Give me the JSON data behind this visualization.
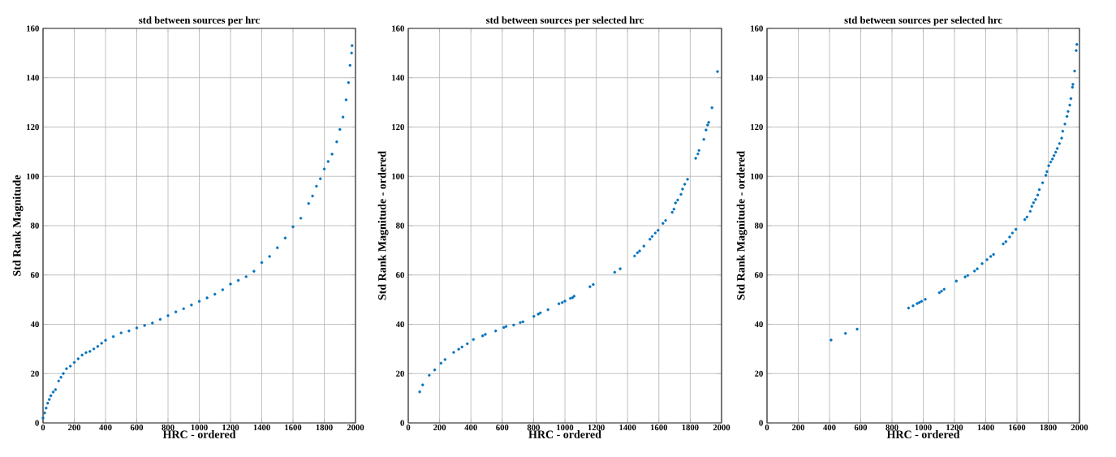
{
  "chart_data": [
    {
      "type": "scatter",
      "title": "std between sources per hrc",
      "xlabel": "HRC - ordered",
      "ylabel": "Std Rank Magnitude",
      "xlim": [
        0,
        2000
      ],
      "ylim": [
        0,
        160
      ],
      "xticks": [
        0,
        200,
        400,
        600,
        800,
        1000,
        1200,
        1400,
        1600,
        1800,
        2000
      ],
      "yticks": [
        0,
        20,
        40,
        60,
        80,
        100,
        120,
        140,
        160
      ],
      "grid": true,
      "x": [
        0,
        10,
        20,
        30,
        40,
        50,
        65,
        80,
        100,
        115,
        130,
        150,
        175,
        200,
        225,
        250,
        275,
        300,
        325,
        350,
        375,
        400,
        450,
        500,
        550,
        600,
        650,
        700,
        750,
        800,
        850,
        900,
        950,
        1000,
        1050,
        1100,
        1150,
        1200,
        1250,
        1300,
        1350,
        1400,
        1450,
        1500,
        1550,
        1600,
        1650,
        1700,
        1725,
        1750,
        1775,
        1800,
        1825,
        1850,
        1880,
        1900,
        1920,
        1940,
        1955,
        1965,
        1975,
        1978
      ],
      "series": [
        {
          "color": "#0072bd",
          "values": [
            2,
            4,
            6,
            8,
            9.5,
            11,
            12.5,
            13.5,
            17,
            18.5,
            20,
            22,
            23,
            24.5,
            26,
            27.5,
            28.5,
            29,
            30,
            31,
            32.3,
            33.5,
            35,
            36.5,
            37.3,
            38.5,
            39.5,
            40.5,
            42,
            43.5,
            45,
            46.3,
            47.8,
            49.3,
            50.7,
            52.2,
            54,
            56.3,
            57.8,
            59.3,
            61.5,
            65,
            67.5,
            71,
            75,
            79.5,
            83,
            89,
            92,
            96,
            99,
            103,
            106,
            109,
            114,
            119,
            124,
            131,
            138,
            145,
            150,
            153
          ]
        }
      ]
    },
    {
      "type": "scatter",
      "title": "std between sources per selected hrc",
      "xlabel": "HRC - ordered",
      "ylabel": "Std Rank Magnitude - ordered",
      "xlim": [
        0,
        2000
      ],
      "ylim": [
        0,
        160
      ],
      "xticks": [
        0,
        200,
        400,
        600,
        800,
        1000,
        1200,
        1400,
        1600,
        1800,
        2000
      ],
      "yticks": [
        0,
        20,
        40,
        60,
        80,
        100,
        120,
        140,
        160
      ],
      "grid": true,
      "x": [
        73,
        92,
        134,
        169,
        209,
        235,
        290,
        322,
        343,
        377,
        416,
        475,
        492,
        558,
        610,
        624,
        673,
        715,
        732,
        802,
        830,
        843,
        892,
        962,
        983,
        1000,
        1035,
        1049,
        1059,
        1160,
        1181,
        1318,
        1353,
        1445,
        1463,
        1477,
        1504,
        1543,
        1557,
        1577,
        1595,
        1626,
        1643,
        1685,
        1696,
        1706,
        1720,
        1741,
        1751,
        1765,
        1783,
        1835,
        1849,
        1856,
        1887,
        1901,
        1911,
        1918,
        1939,
        1974
      ],
      "series": [
        {
          "color": "#0072bd",
          "values": [
            12.6,
            15.4,
            19.3,
            21.5,
            24.2,
            25.7,
            28.6,
            29.9,
            30.8,
            32.1,
            33.8,
            35.3,
            35.9,
            37.3,
            38.7,
            39.1,
            39.7,
            40.7,
            41,
            43.2,
            44.1,
            44.6,
            45.9,
            48.3,
            48.8,
            49.4,
            50.5,
            50.8,
            51.4,
            55.2,
            56.1,
            61.1,
            62.5,
            67.7,
            69,
            69.7,
            71.7,
            74.5,
            75.6,
            77,
            78.1,
            80.9,
            82.1,
            85.4,
            86.7,
            89.2,
            90.4,
            92.7,
            94.8,
            96.8,
            98.8,
            107.3,
            109.1,
            110.5,
            115,
            118.8,
            120.8,
            121.9,
            127.8,
            142.5
          ]
        }
      ]
    },
    {
      "type": "scatter",
      "title": "std between sources per selected hrc",
      "xlabel": "HRC - ordered",
      "ylabel": "Std Rank Magnitude - ordered",
      "xlim": [
        0,
        2000
      ],
      "ylim": [
        0,
        160
      ],
      "xticks": [
        0,
        200,
        400,
        600,
        800,
        1000,
        1200,
        1400,
        1600,
        1800,
        2000
      ],
      "yticks": [
        0,
        20,
        40,
        60,
        80,
        100,
        120,
        140,
        160
      ],
      "grid": true,
      "x": [
        410,
        502,
        577,
        906,
        935,
        961,
        975,
        989,
        1013,
        1103,
        1117,
        1134,
        1212,
        1268,
        1285,
        1328,
        1346,
        1377,
        1408,
        1432,
        1450,
        1512,
        1529,
        1553,
        1571,
        1593,
        1650,
        1664,
        1685,
        1695,
        1706,
        1719,
        1733,
        1743,
        1764,
        1785,
        1792,
        1803,
        1816,
        1827,
        1837,
        1848,
        1858,
        1872,
        1886,
        1893,
        1907,
        1920,
        1927,
        1938,
        1945,
        1955,
        1958,
        1969,
        1979,
        1983
      ],
      "series": [
        {
          "color": "#0072bd",
          "values": [
            33.6,
            36.3,
            38,
            46.6,
            47.5,
            48.4,
            48.8,
            49.3,
            50.1,
            52.8,
            53.4,
            54.2,
            57.5,
            59.2,
            59.8,
            61.6,
            62.5,
            64.6,
            66.2,
            67.5,
            68.3,
            72.6,
            73.5,
            75.4,
            77,
            78.5,
            82.5,
            83.5,
            85.8,
            87.8,
            89.3,
            90.6,
            92.4,
            94.6,
            97.4,
            100.4,
            101.9,
            104.3,
            105.8,
            107,
            108.4,
            109.8,
            111.3,
            113.3,
            115.5,
            118.3,
            121.2,
            124.3,
            126.3,
            128.9,
            131.5,
            136.1,
            137.3,
            142.7,
            151,
            153.5
          ]
        }
      ]
    }
  ]
}
